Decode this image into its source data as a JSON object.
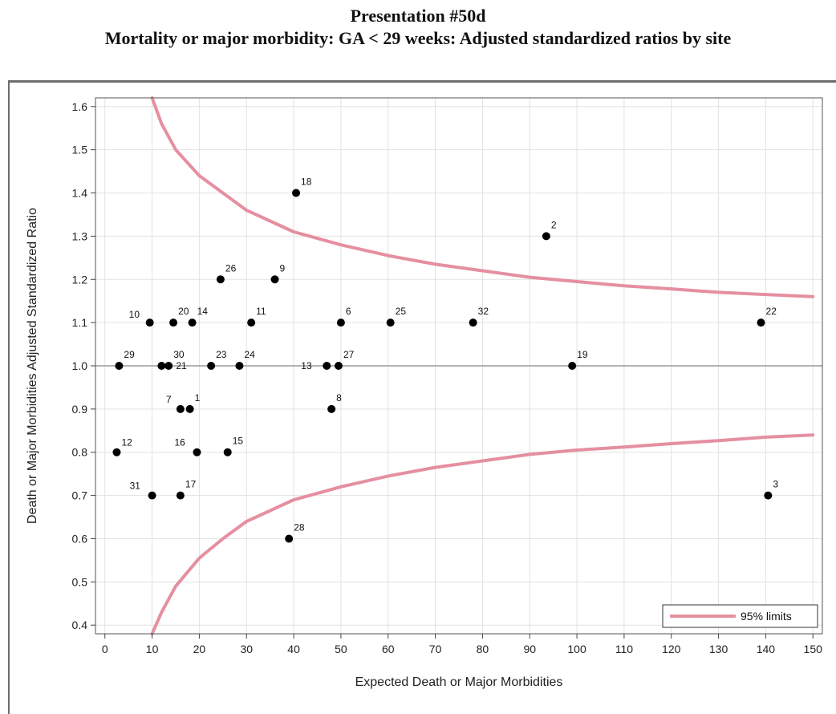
{
  "chart_data": {
    "type": "scatter",
    "title": "Presentation #50d",
    "subtitle": "Mortality or major morbidity: GA < 29 weeks: Adjusted standardized ratios by site",
    "xlabel": "Expected Death or Major Morbidities",
    "ylabel": "Death or Major Morbidities Adjusted Standardized Ratio",
    "xlim": [
      -2,
      152
    ],
    "ylim": [
      0.38,
      1.62
    ],
    "x_ticks": [
      0,
      10,
      20,
      30,
      40,
      50,
      60,
      70,
      80,
      90,
      100,
      110,
      120,
      130,
      140,
      150
    ],
    "y_ticks": [
      0.4,
      0.5,
      0.6,
      0.7,
      0.8,
      0.9,
      1.0,
      1.1,
      1.2,
      1.3,
      1.4,
      1.5,
      1.6
    ],
    "y_tick_labels": [
      "0.4",
      "0.5",
      "0.6",
      "0.7",
      "0.8",
      "0.9",
      "1.0",
      "1.1",
      "1.2",
      "1.3",
      "1.4",
      "1.5",
      "1.6"
    ],
    "grid": true,
    "reference_line_y": 1.0,
    "legend": {
      "position": "bottom-right",
      "entries": [
        {
          "label": "95% limits",
          "color": "#e58fa0"
        }
      ]
    },
    "limit_color": "#e58fa0",
    "point_color": "#000000",
    "limit_curves": {
      "upper": [
        [
          10,
          1.62
        ],
        [
          12,
          1.56
        ],
        [
          15,
          1.5
        ],
        [
          20,
          1.44
        ],
        [
          25,
          1.4
        ],
        [
          30,
          1.36
        ],
        [
          35,
          1.335
        ],
        [
          40,
          1.31
        ],
        [
          45,
          1.295
        ],
        [
          50,
          1.28
        ],
        [
          60,
          1.255
        ],
        [
          70,
          1.235
        ],
        [
          80,
          1.22
        ],
        [
          90,
          1.205
        ],
        [
          100,
          1.195
        ],
        [
          110,
          1.185
        ],
        [
          120,
          1.178
        ],
        [
          130,
          1.17
        ],
        [
          140,
          1.165
        ],
        [
          150,
          1.16
        ]
      ],
      "lower": [
        [
          10,
          0.38
        ],
        [
          12,
          0.43
        ],
        [
          15,
          0.49
        ],
        [
          20,
          0.555
        ],
        [
          25,
          0.6
        ],
        [
          30,
          0.64
        ],
        [
          35,
          0.665
        ],
        [
          40,
          0.69
        ],
        [
          45,
          0.705
        ],
        [
          50,
          0.72
        ],
        [
          60,
          0.745
        ],
        [
          70,
          0.765
        ],
        [
          80,
          0.78
        ],
        [
          90,
          0.795
        ],
        [
          100,
          0.805
        ],
        [
          110,
          0.812
        ],
        [
          120,
          0.82
        ],
        [
          130,
          0.827
        ],
        [
          140,
          0.835
        ],
        [
          150,
          0.84
        ]
      ]
    },
    "points": [
      {
        "label": "18",
        "x": 40.5,
        "y": 1.4
      },
      {
        "label": "2",
        "x": 93.5,
        "y": 1.3
      },
      {
        "label": "26",
        "x": 24.5,
        "y": 1.2
      },
      {
        "label": "9",
        "x": 36,
        "y": 1.2
      },
      {
        "label": "10",
        "x": 9.5,
        "y": 1.1
      },
      {
        "label": "20",
        "x": 14.5,
        "y": 1.1
      },
      {
        "label": "14",
        "x": 18.5,
        "y": 1.1
      },
      {
        "label": "11",
        "x": 31,
        "y": 1.1
      },
      {
        "label": "6",
        "x": 50,
        "y": 1.1
      },
      {
        "label": "25",
        "x": 60.5,
        "y": 1.1
      },
      {
        "label": "32",
        "x": 78,
        "y": 1.1
      },
      {
        "label": "22",
        "x": 139,
        "y": 1.1
      },
      {
        "label": "29",
        "x": 3,
        "y": 1.0
      },
      {
        "label": "21",
        "x": 12,
        "y": 1.0
      },
      {
        "label": "30",
        "x": 13.5,
        "y": 1.0
      },
      {
        "label": "23",
        "x": 22.5,
        "y": 1.0
      },
      {
        "label": "24",
        "x": 28.5,
        "y": 1.0
      },
      {
        "label": "13",
        "x": 47,
        "y": 1.0
      },
      {
        "label": "27",
        "x": 49.5,
        "y": 1.0
      },
      {
        "label": "19",
        "x": 99,
        "y": 1.0
      },
      {
        "label": "7",
        "x": 16,
        "y": 0.9
      },
      {
        "label": "1",
        "x": 18,
        "y": 0.9
      },
      {
        "label": "8",
        "x": 48,
        "y": 0.9
      },
      {
        "label": "12",
        "x": 2.5,
        "y": 0.8
      },
      {
        "label": "16",
        "x": 19.5,
        "y": 0.8
      },
      {
        "label": "15",
        "x": 26,
        "y": 0.8
      },
      {
        "label": "31",
        "x": 10,
        "y": 0.7
      },
      {
        "label": "17",
        "x": 16,
        "y": 0.7
      },
      {
        "label": "3",
        "x": 140.5,
        "y": 0.7
      },
      {
        "label": "28",
        "x": 39,
        "y": 0.6
      }
    ]
  }
}
